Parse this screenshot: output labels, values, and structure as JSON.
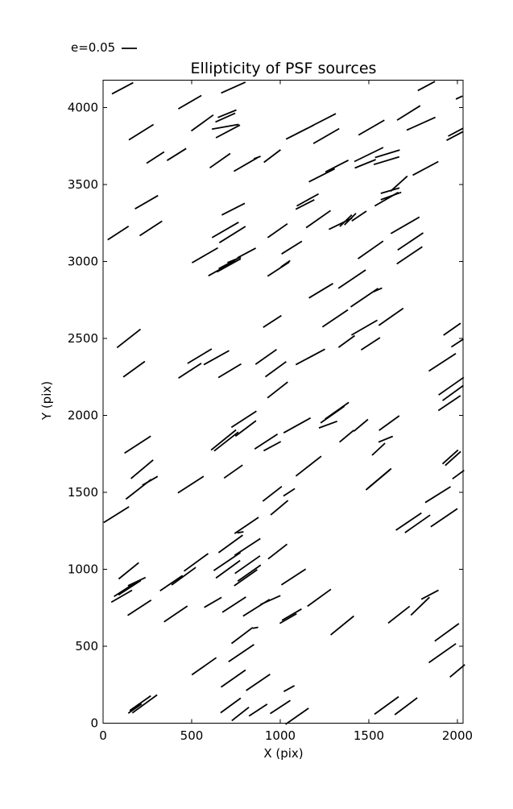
{
  "title": "Ellipticity of PSF sources",
  "legend": {
    "label": "e=0.05",
    "ref_ellipticity": 0.05
  },
  "axes": {
    "xlabel": "X (pix)",
    "ylabel": "Y (pix)",
    "xtick_labels": [
      "0",
      "500",
      "1000",
      "1500",
      "2000"
    ],
    "ytick_labels": [
      "0",
      "500",
      "1000",
      "1500",
      "2000",
      "2500",
      "3000",
      "3500",
      "4000"
    ]
  },
  "chart_data": {
    "type": "scatter",
    "subtype": "ellipticity-whisker-plot",
    "title": "Ellipticity of PSF sources",
    "xlabel": "X (pix)",
    "ylabel": "Y (pix)",
    "xlim": [
      0,
      2032
    ],
    "ylim": [
      0,
      4178
    ],
    "xticks": [
      0,
      500,
      1000,
      1500,
      2000
    ],
    "yticks": [
      0,
      500,
      1000,
      1500,
      2000,
      2500,
      3000,
      3500,
      4000
    ],
    "grid": false,
    "legend": {
      "label": "e=0.05",
      "ref_ellipticity": 0.05,
      "position": "above-axes-left"
    },
    "colors": {
      "line": "#000000",
      "background": "#ffffff"
    },
    "point_format": [
      "x_pix",
      "y_pix",
      "position_angle_deg",
      "ellipticity"
    ],
    "points": [
      [
        110,
        4125,
        28,
        0.083
      ],
      [
        490,
        4035,
        30,
        0.092
      ],
      [
        735,
        4130,
        24,
        0.092
      ],
      [
        215,
        3840,
        32,
        0.1
      ],
      [
        560,
        3900,
        36,
        0.094
      ],
      [
        690,
        3935,
        24,
        0.075
      ],
      [
        700,
        3960,
        22,
        0.069
      ],
      [
        705,
        3845,
        28,
        0.094
      ],
      [
        690,
        3875,
        10,
        0.094
      ],
      [
        415,
        3695,
        32,
        0.078
      ],
      [
        295,
        3675,
        33,
        0.072
      ],
      [
        660,
        3655,
        35,
        0.086
      ],
      [
        805,
        3630,
        30,
        0.094
      ],
      [
        955,
        3685,
        37,
        0.072
      ],
      [
        870,
        3675,
        20,
        0.025
      ],
      [
        245,
        3385,
        30,
        0.092
      ],
      [
        1825,
        4140,
        28,
        0.067
      ],
      [
        2010,
        4065,
        25,
        0.025
      ],
      [
        1110,
        3840,
        27,
        0.106
      ],
      [
        1245,
        3920,
        27,
        0.094
      ],
      [
        1260,
        3815,
        30,
        0.103
      ],
      [
        1515,
        3870,
        30,
        0.103
      ],
      [
        1725,
        3965,
        32,
        0.094
      ],
      [
        1795,
        3895,
        24,
        0.108
      ],
      [
        1985,
        3815,
        28,
        0.064
      ],
      [
        1990,
        3840,
        28,
        0.058
      ],
      [
        1500,
        3695,
        26,
        0.111
      ],
      [
        1480,
        3635,
        22,
        0.078
      ],
      [
        1600,
        3655,
        17,
        0.092
      ],
      [
        1605,
        3700,
        17,
        0.089
      ],
      [
        1235,
        3560,
        27,
        0.1
      ],
      [
        1320,
        3620,
        27,
        0.089
      ],
      [
        1820,
        3605,
        28,
        0.1
      ],
      [
        1670,
        3505,
        42,
        0.078
      ],
      [
        1620,
        3460,
        16,
        0.067
      ],
      [
        1625,
        3425,
        20,
        0.075
      ],
      [
        1600,
        3405,
        30,
        0.094
      ],
      [
        1155,
        3400,
        29,
        0.086
      ],
      [
        1140,
        3370,
        27,
        0.072
      ],
      [
        85,
        3185,
        33,
        0.086
      ],
      [
        270,
        3215,
        33,
        0.092
      ],
      [
        735,
        3340,
        27,
        0.089
      ],
      [
        690,
        3205,
        30,
        0.106
      ],
      [
        730,
        3175,
        32,
        0.106
      ],
      [
        985,
        3200,
        35,
        0.083
      ],
      [
        575,
        3040,
        30,
        0.103
      ],
      [
        740,
        3010,
        22,
        0.05
      ],
      [
        705,
        2985,
        28,
        0.072
      ],
      [
        810,
        3055,
        28,
        0.072
      ],
      [
        670,
        2955,
        29,
        0.106
      ],
      [
        710,
        2975,
        29,
        0.094
      ],
      [
        990,
        2950,
        33,
        0.089
      ],
      [
        955,
        2610,
        33,
        0.075
      ],
      [
        1215,
        3275,
        35,
        0.103
      ],
      [
        1340,
        3245,
        26,
        0.089
      ],
      [
        1370,
        3265,
        44,
        0.058
      ],
      [
        1395,
        3275,
        45,
        0.056
      ],
      [
        1445,
        3295,
        34,
        0.061
      ],
      [
        1705,
        3235,
        30,
        0.114
      ],
      [
        1735,
        3130,
        34,
        0.106
      ],
      [
        1730,
        3040,
        34,
        0.106
      ],
      [
        1510,
        3075,
        35,
        0.106
      ],
      [
        1065,
        3090,
        32,
        0.083
      ],
      [
        1030,
        2985,
        35,
        0.039
      ],
      [
        1230,
        2810,
        31,
        0.097
      ],
      [
        1405,
        2885,
        34,
        0.114
      ],
      [
        1475,
        2765,
        34,
        0.114
      ],
      [
        1550,
        2815,
        24,
        0.033
      ],
      [
        1310,
        2630,
        34,
        0.106
      ],
      [
        1475,
        2570,
        30,
        0.103
      ],
      [
        1625,
        2640,
        35,
        0.103
      ],
      [
        1970,
        2560,
        35,
        0.072
      ],
      [
        145,
        2500,
        38,
        0.103
      ],
      [
        175,
        2300,
        36,
        0.092
      ],
      [
        490,
        2290,
        33,
        0.094
      ],
      [
        545,
        2385,
        31,
        0.097
      ],
      [
        640,
        2375,
        29,
        0.1
      ],
      [
        715,
        2290,
        31,
        0.092
      ],
      [
        920,
        2380,
        35,
        0.089
      ],
      [
        975,
        2300,
        36,
        0.089
      ],
      [
        985,
        2165,
        38,
        0.089
      ],
      [
        795,
        1975,
        33,
        0.103
      ],
      [
        805,
        1915,
        37,
        0.089
      ],
      [
        680,
        1840,
        39,
        0.111
      ],
      [
        695,
        1830,
        38,
        0.106
      ],
      [
        195,
        1810,
        33,
        0.108
      ],
      [
        920,
        1830,
        33,
        0.094
      ],
      [
        955,
        1800,
        28,
        0.067
      ],
      [
        1375,
        2480,
        36,
        0.069
      ],
      [
        1510,
        2465,
        33,
        0.078
      ],
      [
        1170,
        2380,
        28,
        0.114
      ],
      [
        1915,
        2345,
        33,
        0.111
      ],
      [
        2000,
        2470,
        33,
        0.05
      ],
      [
        1965,
        2190,
        35,
        0.106
      ],
      [
        1975,
        2145,
        36,
        0.089
      ],
      [
        1955,
        2080,
        34,
        0.092
      ],
      [
        1320,
        2030,
        35,
        0.1
      ],
      [
        1295,
        2005,
        35,
        0.1
      ],
      [
        1270,
        1940,
        20,
        0.067
      ],
      [
        1095,
        1935,
        29,
        0.106
      ],
      [
        1375,
        1865,
        40,
        0.064
      ],
      [
        1455,
        1935,
        40,
        0.064
      ],
      [
        1615,
        1950,
        36,
        0.086
      ],
      [
        1595,
        1845,
        22,
        0.053
      ],
      [
        1555,
        1780,
        43,
        0.061
      ],
      [
        1960,
        1730,
        42,
        0.072
      ],
      [
        1975,
        1720,
        42,
        0.072
      ],
      [
        220,
        1650,
        40,
        0.1
      ],
      [
        200,
        1520,
        38,
        0.111
      ],
      [
        265,
        1575,
        30,
        0.061
      ],
      [
        75,
        1355,
        32,
        0.103
      ],
      [
        495,
        1550,
        33,
        0.106
      ],
      [
        735,
        1635,
        35,
        0.078
      ],
      [
        955,
        1490,
        38,
        0.083
      ],
      [
        995,
        1400,
        40,
        0.078
      ],
      [
        810,
        1285,
        34,
        0.1
      ],
      [
        775,
        1240,
        10,
        0.022
      ],
      [
        720,
        1165,
        36,
        0.103
      ],
      [
        815,
        1145,
        33,
        0.106
      ],
      [
        700,
        1050,
        34,
        0.111
      ],
      [
        525,
        1045,
        36,
        0.103
      ],
      [
        455,
        955,
        36,
        0.103
      ],
      [
        385,
        910,
        34,
        0.094
      ],
      [
        145,
        990,
        39,
        0.089
      ],
      [
        125,
        870,
        33,
        0.092
      ],
      [
        150,
        880,
        33,
        0.092
      ],
      [
        190,
        920,
        25,
        0.067
      ],
      [
        705,
        1000,
        36,
        0.103
      ],
      [
        815,
        1030,
        35,
        0.106
      ],
      [
        825,
        975,
        35,
        0.097
      ],
      [
        805,
        945,
        35,
        0.097
      ],
      [
        985,
        1115,
        38,
        0.083
      ],
      [
        1160,
        1670,
        38,
        0.111
      ],
      [
        1050,
        1500,
        33,
        0.047
      ],
      [
        1550,
        1580,
        40,
        0.106
      ],
      [
        1560,
        1590,
        40,
        0.106
      ],
      [
        1890,
        1485,
        32,
        0.103
      ],
      [
        2005,
        1615,
        36,
        0.05
      ],
      [
        1725,
        1310,
        34,
        0.106
      ],
      [
        1775,
        1295,
        35,
        0.106
      ],
      [
        1925,
        1335,
        34,
        0.111
      ],
      [
        1075,
        950,
        33,
        0.1
      ],
      [
        1845,
        835,
        28,
        0.067
      ],
      [
        105,
        825,
        30,
        0.083
      ],
      [
        205,
        750,
        33,
        0.097
      ],
      [
        410,
        710,
        34,
        0.097
      ],
      [
        620,
        785,
        30,
        0.069
      ],
      [
        740,
        770,
        33,
        0.097
      ],
      [
        865,
        750,
        32,
        0.108
      ],
      [
        945,
        800,
        24,
        0.075
      ],
      [
        785,
        570,
        37,
        0.092
      ],
      [
        860,
        620,
        10,
        0.019
      ],
      [
        780,
        455,
        34,
        0.106
      ],
      [
        570,
        370,
        35,
        0.103
      ],
      [
        735,
        290,
        35,
        0.103
      ],
      [
        875,
        265,
        34,
        0.1
      ],
      [
        235,
        125,
        36,
        0.106
      ],
      [
        210,
        130,
        35,
        0.089
      ],
      [
        720,
        115,
        36,
        0.086
      ],
      [
        775,
        60,
        38,
        0.075
      ],
      [
        1000,
        105,
        33,
        0.083
      ],
      [
        1065,
        705,
        30,
        0.078
      ],
      [
        1045,
        680,
        30,
        0.067
      ],
      [
        1220,
        815,
        36,
        0.1
      ],
      [
        1350,
        635,
        39,
        0.103
      ],
      [
        1670,
        705,
        38,
        0.094
      ],
      [
        1790,
        760,
        44,
        0.089
      ],
      [
        1940,
        590,
        36,
        0.103
      ],
      [
        1915,
        455,
        35,
        0.114
      ],
      [
        2000,
        340,
        40,
        0.067
      ],
      [
        1050,
        225,
        29,
        0.042
      ],
      [
        1095,
        45,
        35,
        0.097
      ],
      [
        1600,
        115,
        36,
        0.103
      ],
      [
        1710,
        110,
        37,
        0.097
      ],
      [
        875,
        85,
        33,
        0.075
      ],
      [
        180,
        95,
        35,
        0.056
      ]
    ]
  }
}
